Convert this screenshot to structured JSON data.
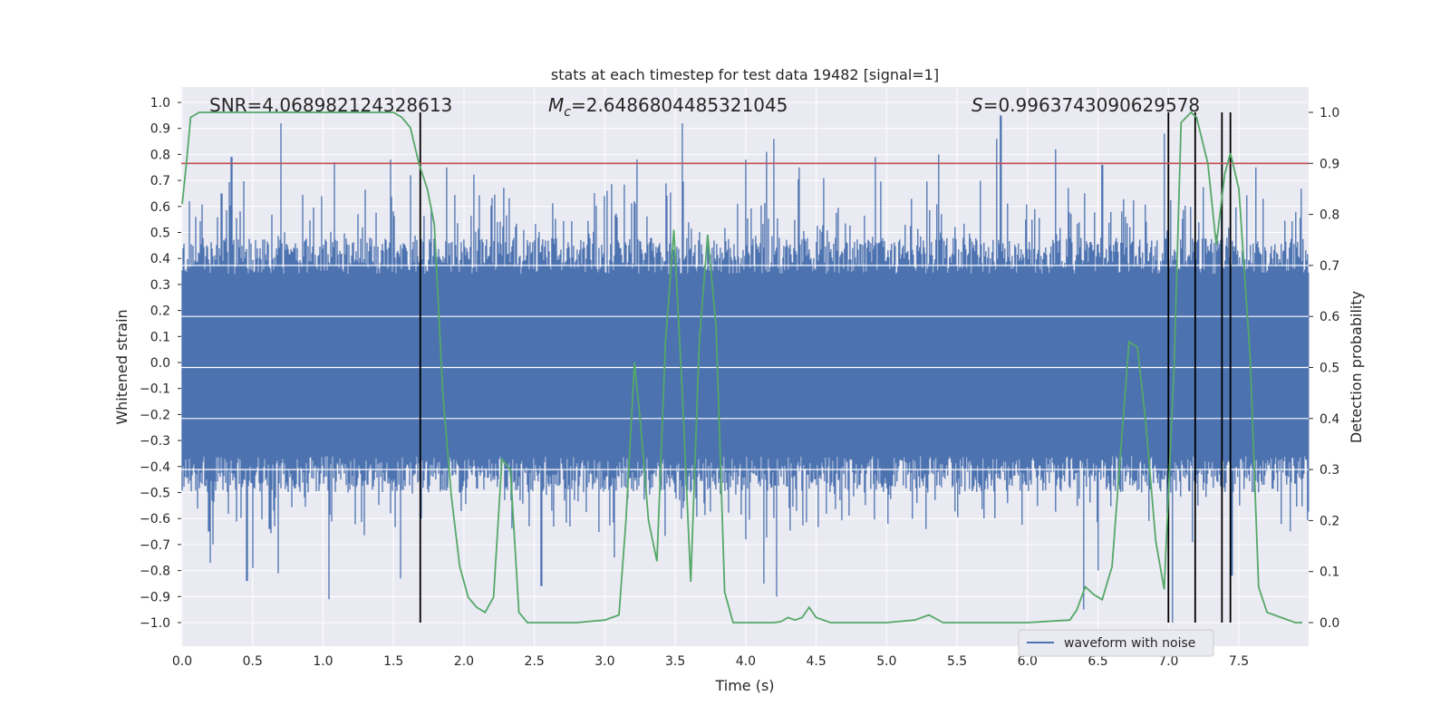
{
  "chart_data": {
    "type": "line",
    "title": "stats at each timestep for test data 19482 [signal=1]",
    "xlabel": "Time (s)",
    "ylabel_left": "Whitened strain",
    "ylabel_right": "Detection probability",
    "xlim": [
      0.0,
      8.0
    ],
    "ylim_left": [
      -1.1,
      1.05
    ],
    "ylim_right": [
      -0.05,
      1.05
    ],
    "x_ticks": [
      "0.0",
      "0.5",
      "1.0",
      "1.5",
      "2.0",
      "2.5",
      "3.0",
      "3.5",
      "4.0",
      "4.5",
      "5.0",
      "5.5",
      "6.0",
      "6.5",
      "7.0",
      "7.5"
    ],
    "y_left_ticks": [
      "1.0",
      "0.9",
      "0.8",
      "0.7",
      "0.6",
      "0.5",
      "0.4",
      "0.3",
      "0.2",
      "0.1",
      "0.0",
      "-0.1",
      "-0.2",
      "-0.3",
      "-0.4",
      "-0.5",
      "-0.6",
      "-0.7",
      "-0.8",
      "-0.9",
      "-1.0"
    ],
    "y_right_ticks": [
      "1.0",
      "0.9",
      "0.8",
      "0.7",
      "0.6",
      "0.5",
      "0.4",
      "0.3",
      "0.2",
      "0.1",
      "0.0"
    ],
    "grid": true,
    "annotations": {
      "snr": "SNR=4.068982124328613",
      "mc_symbol": "M",
      "mc_sub": "c",
      "mc_value": "=2.6486804485321045",
      "s_symbol": "S",
      "s_value": "=0.9963743090629578"
    },
    "threshold": {
      "name": "detection threshold",
      "value": 0.9,
      "axis": "right",
      "color": "#c44e52"
    },
    "vertical_markers": {
      "color": "#000000",
      "times": [
        1.69,
        7.0,
        7.19,
        7.38,
        7.44
      ]
    },
    "waveform": {
      "name": "waveform with noise",
      "color": "#4c72b0",
      "t_start": 0.0,
      "t_end": 8.0,
      "typical_amplitude": 0.4,
      "peaks_up": [
        {
          "t": 0.05,
          "v": 0.62
        },
        {
          "t": 0.28,
          "v": 0.65
        },
        {
          "t": 0.35,
          "v": 0.79
        },
        {
          "t": 0.7,
          "v": 0.92
        },
        {
          "t": 1.08,
          "v": 0.77
        },
        {
          "t": 1.48,
          "v": 0.78
        },
        {
          "t": 1.62,
          "v": 0.72
        },
        {
          "t": 1.88,
          "v": 0.75
        },
        {
          "t": 3.23,
          "v": 0.78
        },
        {
          "t": 3.55,
          "v": 0.92
        },
        {
          "t": 4.0,
          "v": 0.78
        },
        {
          "t": 4.15,
          "v": 0.81
        },
        {
          "t": 4.2,
          "v": 0.86
        },
        {
          "t": 4.38,
          "v": 0.75
        },
        {
          "t": 4.92,
          "v": 0.79
        },
        {
          "t": 5.37,
          "v": 0.8
        },
        {
          "t": 5.78,
          "v": 0.86
        },
        {
          "t": 5.81,
          "v": 0.95
        },
        {
          "t": 6.2,
          "v": 0.82
        },
        {
          "t": 6.53,
          "v": 0.76
        },
        {
          "t": 6.97,
          "v": 0.88
        },
        {
          "t": 7.62,
          "v": 0.75
        }
      ],
      "peaks_down": [
        {
          "t": 0.2,
          "v": -0.65
        },
        {
          "t": 0.2,
          "v": -0.74
        },
        {
          "t": 0.2,
          "v": -0.77
        },
        {
          "t": 0.19,
          "v": -0.64
        },
        {
          "t": 0.19,
          "v": -0.65
        },
        {
          "t": 0.22,
          "v": -0.7
        },
        {
          "t": 0.46,
          "v": -0.84
        },
        {
          "t": 0.5,
          "v": -0.79
        },
        {
          "t": 0.62,
          "v": -0.64
        },
        {
          "t": 0.68,
          "v": -0.81
        },
        {
          "t": 1.04,
          "v": -0.91
        },
        {
          "t": 1.55,
          "v": -0.83
        },
        {
          "t": 1.7,
          "v": -0.6
        },
        {
          "t": 2.55,
          "v": -0.86
        },
        {
          "t": 3.07,
          "v": -0.75
        },
        {
          "t": 4.13,
          "v": -0.85
        },
        {
          "t": 4.22,
          "v": -0.9
        },
        {
          "t": 6.4,
          "v": -0.95
        },
        {
          "t": 6.5,
          "v": -0.8
        },
        {
          "t": 7.03,
          "v": -1.0
        },
        {
          "t": 7.45,
          "v": -0.82
        }
      ]
    },
    "probability": {
      "name": "detection probability",
      "color": "#55a868",
      "axis": "right",
      "t": [
        0.0,
        0.03,
        0.06,
        0.12,
        0.3,
        0.6,
        1.0,
        1.3,
        1.5,
        1.56,
        1.62,
        1.68,
        1.74,
        1.79,
        1.85,
        1.91,
        1.97,
        2.03,
        2.09,
        2.15,
        2.21,
        2.27,
        2.33,
        2.39,
        2.45,
        2.51,
        2.6,
        2.8,
        3.0,
        3.1,
        3.15,
        3.21,
        3.25,
        3.31,
        3.37,
        3.43,
        3.49,
        3.55,
        3.61,
        3.67,
        3.73,
        3.79,
        3.85,
        3.91,
        4.0,
        4.1,
        4.2,
        4.25,
        4.3,
        4.35,
        4.4,
        4.45,
        4.5,
        4.6,
        4.7,
        4.8,
        5.0,
        5.2,
        5.3,
        5.4,
        6.0,
        6.3,
        6.35,
        6.41,
        6.47,
        6.53,
        6.6,
        6.66,
        6.72,
        6.78,
        6.84,
        6.91,
        6.97,
        7.04,
        7.09,
        7.16,
        7.2,
        7.28,
        7.34,
        7.4,
        7.44,
        7.5,
        7.58,
        7.64,
        7.7,
        7.8,
        7.9,
        7.95
      ],
      "p": [
        0.82,
        0.9,
        0.99,
        1.0,
        1.0,
        1.0,
        1.0,
        1.0,
        1.0,
        0.99,
        0.97,
        0.9,
        0.85,
        0.78,
        0.45,
        0.25,
        0.11,
        0.05,
        0.03,
        0.02,
        0.05,
        0.32,
        0.3,
        0.02,
        0.0,
        0.0,
        0.0,
        0.0,
        0.005,
        0.015,
        0.2,
        0.51,
        0.4,
        0.2,
        0.12,
        0.55,
        0.77,
        0.45,
        0.08,
        0.55,
        0.76,
        0.58,
        0.06,
        0.0,
        0.0,
        0.0,
        0.0,
        0.002,
        0.01,
        0.005,
        0.01,
        0.03,
        0.01,
        0.0,
        0.0,
        0.0,
        0.0,
        0.005,
        0.015,
        0.0,
        0.0,
        0.005,
        0.025,
        0.07,
        0.055,
        0.045,
        0.11,
        0.33,
        0.55,
        0.54,
        0.39,
        0.16,
        0.065,
        0.5,
        0.98,
        1.0,
        0.99,
        0.9,
        0.74,
        0.88,
        0.92,
        0.85,
        0.52,
        0.07,
        0.02,
        0.01,
        0.0,
        0.0
      ]
    },
    "legend": {
      "position": "lower-right",
      "entries": [
        "waveform with noise"
      ]
    }
  }
}
